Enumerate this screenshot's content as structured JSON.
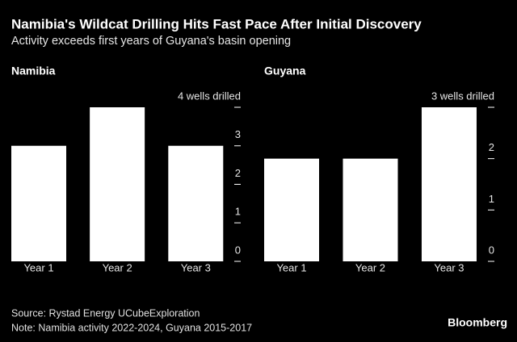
{
  "title": "Namibia's Wildcat Drilling Hits Fast Pace After Initial Discovery",
  "subtitle": "Activity exceeds first years of Guyana's basin opening",
  "source": "Source: Rystad Energy UCubeExploration",
  "note": "Note: Namibia activity 2022-2024, Guyana 2015-2017",
  "brand": "Bloomberg",
  "chart_data": [
    {
      "type": "bar",
      "title": "Namibia",
      "categories": [
        "Year 1",
        "Year 2",
        "Year 3"
      ],
      "values": [
        3,
        4,
        3
      ],
      "color": "#ffffff",
      "ylim": [
        0,
        4
      ],
      "yticks": [
        0,
        1,
        2,
        3,
        {
          "value": 4,
          "label": "4 wells drilled"
        }
      ]
    },
    {
      "type": "bar",
      "title": "Guyana",
      "categories": [
        "Year 1",
        "Year 2",
        "Year 3"
      ],
      "values": [
        2,
        2,
        3
      ],
      "color": "#ffffff",
      "ylim": [
        0,
        3
      ],
      "yticks": [
        0,
        1,
        2,
        {
          "value": 3,
          "label": "3 wells drilled"
        }
      ]
    }
  ]
}
